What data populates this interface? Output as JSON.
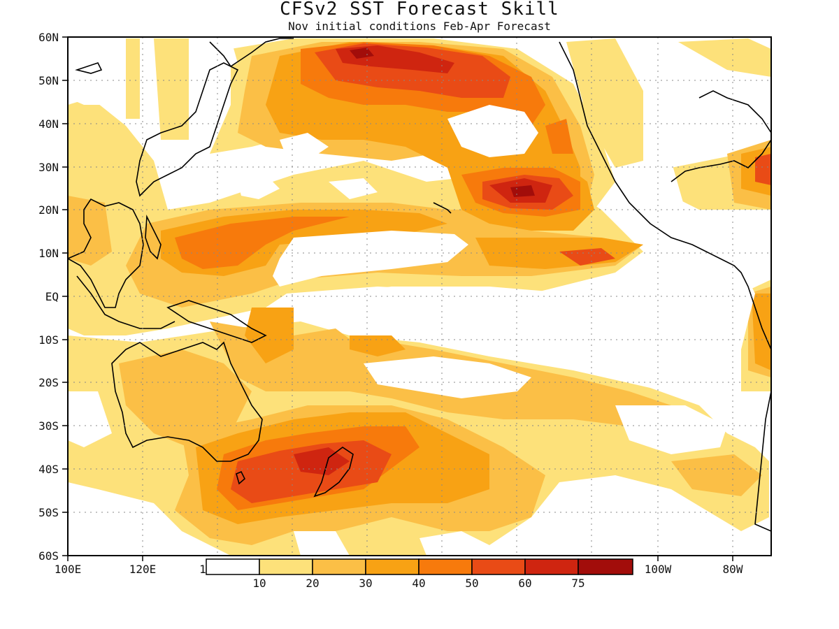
{
  "title": "CFSv2  SST Forecast Skill",
  "subtitle": "Nov initial conditions  Feb-Apr Forecast",
  "map": {
    "lat_labels": [
      "60N",
      "50N",
      "40N",
      "30N",
      "20N",
      "10N",
      "EQ",
      "10S",
      "20S",
      "30S",
      "40S",
      "50S",
      "60S"
    ],
    "lon_labels": [
      "100E",
      "120E",
      "1",
      "100W",
      "80W"
    ],
    "grid": "dotted",
    "coastlines": true
  },
  "legend": {
    "levels": [
      "10",
      "20",
      "30",
      "40",
      "50",
      "60",
      "75"
    ],
    "colors": [
      "#ffffff",
      "#fde17a",
      "#fbbf46",
      "#f8a214",
      "#f77a0c",
      "#e94b16",
      "#cf2510",
      "#a20d0a"
    ]
  },
  "colors": {
    "skill_10_20": "#fde17a",
    "skill_20_30": "#fbbf46",
    "skill_30_40": "#f8a214",
    "skill_40_50": "#f77a0c",
    "skill_50_60": "#e94b16",
    "skill_60_75": "#cf2510",
    "skill_75_plus": "#a20d0a"
  }
}
